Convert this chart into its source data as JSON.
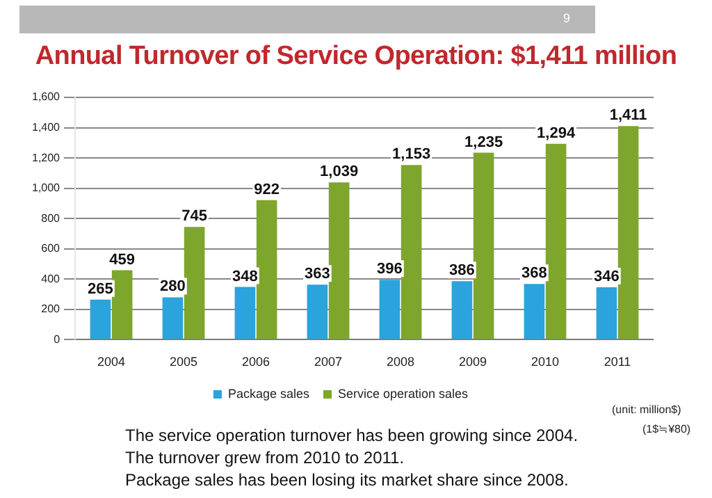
{
  "chart_data": {
    "type": "bar",
    "title": "Annual Turnover of Service Operation: $1,411 million",
    "categories": [
      "2004",
      "2005",
      "2006",
      "2007",
      "2008",
      "2009",
      "2010",
      "2011"
    ],
    "series": [
      {
        "name": "Package sales",
        "color": "#2ba3dd",
        "values": [
          265,
          280,
          348,
          363,
          396,
          386,
          368,
          346
        ],
        "value_labels": [
          "265",
          "280",
          "348",
          "363",
          "396",
          "386",
          "368",
          "346"
        ]
      },
      {
        "name": "Service operation sales",
        "color": "#7ea62c",
        "values": [
          459,
          745,
          922,
          1039,
          1153,
          1235,
          1294,
          1411
        ],
        "value_labels": [
          "459",
          "745",
          "922",
          "1,039",
          "1,153",
          "1,235",
          "1,294",
          "1,411"
        ]
      }
    ],
    "ylim": [
      0,
      1600
    ],
    "yticks": [
      {
        "value": 0,
        "label": "0"
      },
      {
        "value": 200,
        "label": "200"
      },
      {
        "value": 400,
        "label": "400"
      },
      {
        "value": 600,
        "label": "600"
      },
      {
        "value": 800,
        "label": "800"
      },
      {
        "value": 1000,
        "label": "1,000"
      },
      {
        "value": 1200,
        "label": "1,200"
      },
      {
        "value": 1400,
        "label": "1,400"
      },
      {
        "value": 1600,
        "label": "1,600"
      }
    ],
    "grid": "y",
    "legend": "bottom",
    "annotations": [
      "9",
      "(unit: million$)",
      "(1$≒¥80)",
      "The service operation turnover has been growing since 2004.",
      "The turnover grew from 2010 to 2011.",
      "Package sales has been losing its market share since 2008."
    ]
  }
}
